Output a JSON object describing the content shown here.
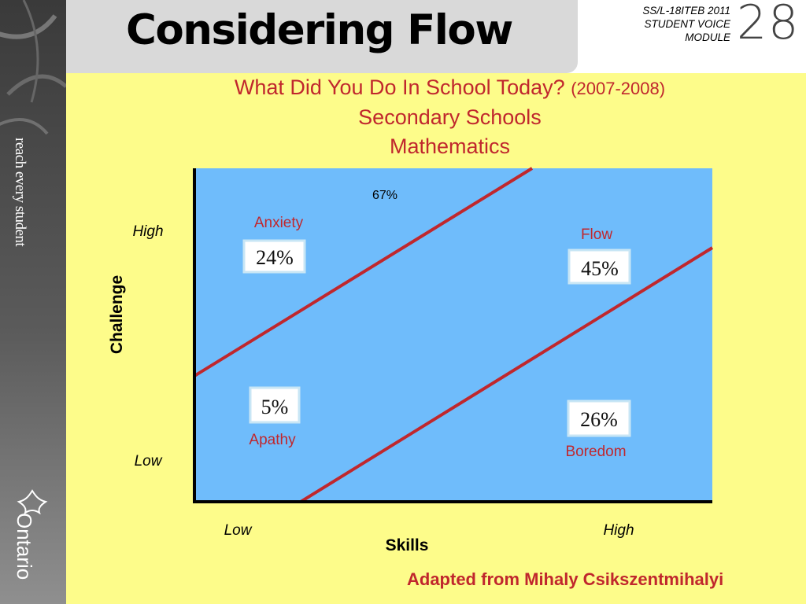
{
  "slide": {
    "title": "Considering Flow",
    "module_lines": [
      "SS/L-18ITEB  2011",
      "STUDENT VOICE",
      "MODULE"
    ],
    "page_number": "28"
  },
  "sidebar": {
    "tagline": "reach every student",
    "brand": "Ontario"
  },
  "chart_data": {
    "type": "table",
    "title": "What Did You Do In School Today?",
    "title_suffix": "(2007-2008)",
    "subtitle_lines": [
      "Secondary Schools",
      "Mathematics"
    ],
    "xlabel": "Skills",
    "ylabel": "Challenge",
    "x_ticks": [
      "Low",
      "High"
    ],
    "y_ticks": [
      "High",
      "Low"
    ],
    "regions": [
      {
        "name": "Anxiety",
        "value": "24%"
      },
      {
        "name": "Flow",
        "value": "45%"
      },
      {
        "name": "Apathy",
        "value": "5%"
      },
      {
        "name": "Boredom",
        "value": "26%"
      }
    ],
    "annotation": "67%",
    "colors": {
      "plot_background": "#6fbcfb",
      "boundary_line": "#c0272d",
      "region_label": "#c0272d"
    }
  },
  "footer": {
    "credit": "Adapted from Mihaly Csikszentmihalyi"
  }
}
